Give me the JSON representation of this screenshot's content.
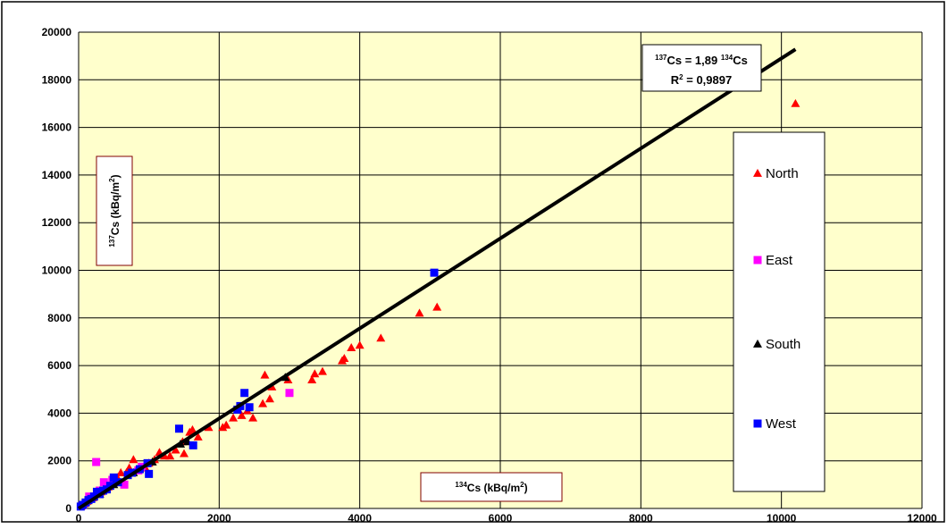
{
  "chart_data": {
    "type": "scatter",
    "title": "",
    "xlabel_main": "Cs (kBq/m",
    "xlabel_iso": "134",
    "xlabel_sup": "2",
    "xlabel_close": ")",
    "ylabel_main": "Cs (kBq/m",
    "ylabel_iso": "137",
    "ylabel_sup": "2",
    "ylabel_close": ")",
    "xlim": [
      0,
      12000
    ],
    "ylim": [
      0,
      20000
    ],
    "x_ticks": [
      "0",
      "2000",
      "4000",
      "6000",
      "8000",
      "10000",
      "12000"
    ],
    "y_ticks": [
      "0",
      "2000",
      "4000",
      "6000",
      "8000",
      "10000",
      "12000",
      "14000",
      "16000",
      "18000",
      "20000"
    ],
    "grid": true,
    "plot_background": "#ffffcc",
    "legend_position": "right",
    "trendline": {
      "slope": 1.89,
      "x_range": [
        0,
        10200
      ],
      "color": "#000000",
      "eq_iso_y": "137",
      "eq_lhs": "Cs = 1,89 ",
      "eq_iso_x": "134",
      "eq_rhs": "Cs",
      "r2_pre": "R",
      "r2_sup": "2",
      "r2_post": " = 0,9897"
    },
    "series": [
      {
        "name": "North",
        "marker": "triangle",
        "color": "#ff0000",
        "points": [
          [
            10200,
            17000
          ],
          [
            5100,
            8450
          ],
          [
            4850,
            8200
          ],
          [
            4300,
            7150
          ],
          [
            4000,
            6850
          ],
          [
            3880,
            6750
          ],
          [
            3780,
            6300
          ],
          [
            3750,
            6200
          ],
          [
            3470,
            5750
          ],
          [
            3360,
            5650
          ],
          [
            3320,
            5400
          ],
          [
            2980,
            5400
          ],
          [
            2750,
            5100
          ],
          [
            2650,
            5600
          ],
          [
            2720,
            4600
          ],
          [
            2620,
            4400
          ],
          [
            2480,
            3800
          ],
          [
            2400,
            4100
          ],
          [
            2320,
            3900
          ],
          [
            2200,
            3800
          ],
          [
            2100,
            3500
          ],
          [
            2050,
            3400
          ],
          [
            1850,
            3400
          ],
          [
            1700,
            3000
          ],
          [
            1620,
            3300
          ],
          [
            1580,
            3200
          ],
          [
            1500,
            2300
          ],
          [
            1480,
            2800
          ],
          [
            1380,
            2450
          ],
          [
            1300,
            2200
          ],
          [
            1220,
            2200
          ],
          [
            1150,
            2350
          ],
          [
            1080,
            2050
          ],
          [
            1000,
            1900
          ],
          [
            950,
            1700
          ],
          [
            780,
            2050
          ],
          [
            720,
            1700
          ],
          [
            680,
            1500
          ],
          [
            600,
            1500
          ],
          [
            550,
            1300
          ],
          [
            480,
            1100
          ],
          [
            420,
            900
          ],
          [
            380,
            800
          ],
          [
            320,
            700
          ],
          [
            260,
            600
          ],
          [
            200,
            450
          ],
          [
            160,
            400
          ],
          [
            120,
            300
          ],
          [
            80,
            200
          ],
          [
            40,
            100
          ]
        ]
      },
      {
        "name": "East",
        "marker": "square",
        "color": "#ff00ff",
        "points": [
          [
            3000,
            4850
          ],
          [
            250,
            1950
          ],
          [
            360,
            1100
          ],
          [
            300,
            750
          ],
          [
            850,
            1600
          ],
          [
            650,
            1000
          ],
          [
            480,
            1200
          ],
          [
            900,
            1750
          ],
          [
            150,
            500
          ],
          [
            60,
            150
          ]
        ]
      },
      {
        "name": "South",
        "marker": "triangle",
        "color": "#000000",
        "points": [
          [
            2940,
            5500
          ],
          [
            1550,
            2800
          ],
          [
            1450,
            2700
          ],
          [
            1050,
            1950
          ],
          [
            780,
            1500
          ],
          [
            500,
            1000
          ],
          [
            300,
            600
          ],
          [
            100,
            250
          ]
        ]
      },
      {
        "name": "West",
        "marker": "square",
        "color": "#0000ff",
        "points": [
          [
            5060,
            9900
          ],
          [
            2360,
            4850
          ],
          [
            2300,
            4300
          ],
          [
            2260,
            4150
          ],
          [
            2430,
            4250
          ],
          [
            1430,
            3350
          ],
          [
            1630,
            2650
          ],
          [
            1000,
            1450
          ],
          [
            980,
            1900
          ],
          [
            870,
            1650
          ],
          [
            760,
            1500
          ],
          [
            700,
            1400
          ],
          [
            560,
            1100
          ],
          [
            500,
            1300
          ],
          [
            450,
            950
          ],
          [
            400,
            800
          ],
          [
            350,
            750
          ],
          [
            300,
            600
          ],
          [
            260,
            700
          ],
          [
            220,
            500
          ],
          [
            180,
            400
          ],
          [
            140,
            350
          ],
          [
            100,
            250
          ],
          [
            60,
            150
          ],
          [
            30,
            80
          ]
        ]
      }
    ]
  }
}
